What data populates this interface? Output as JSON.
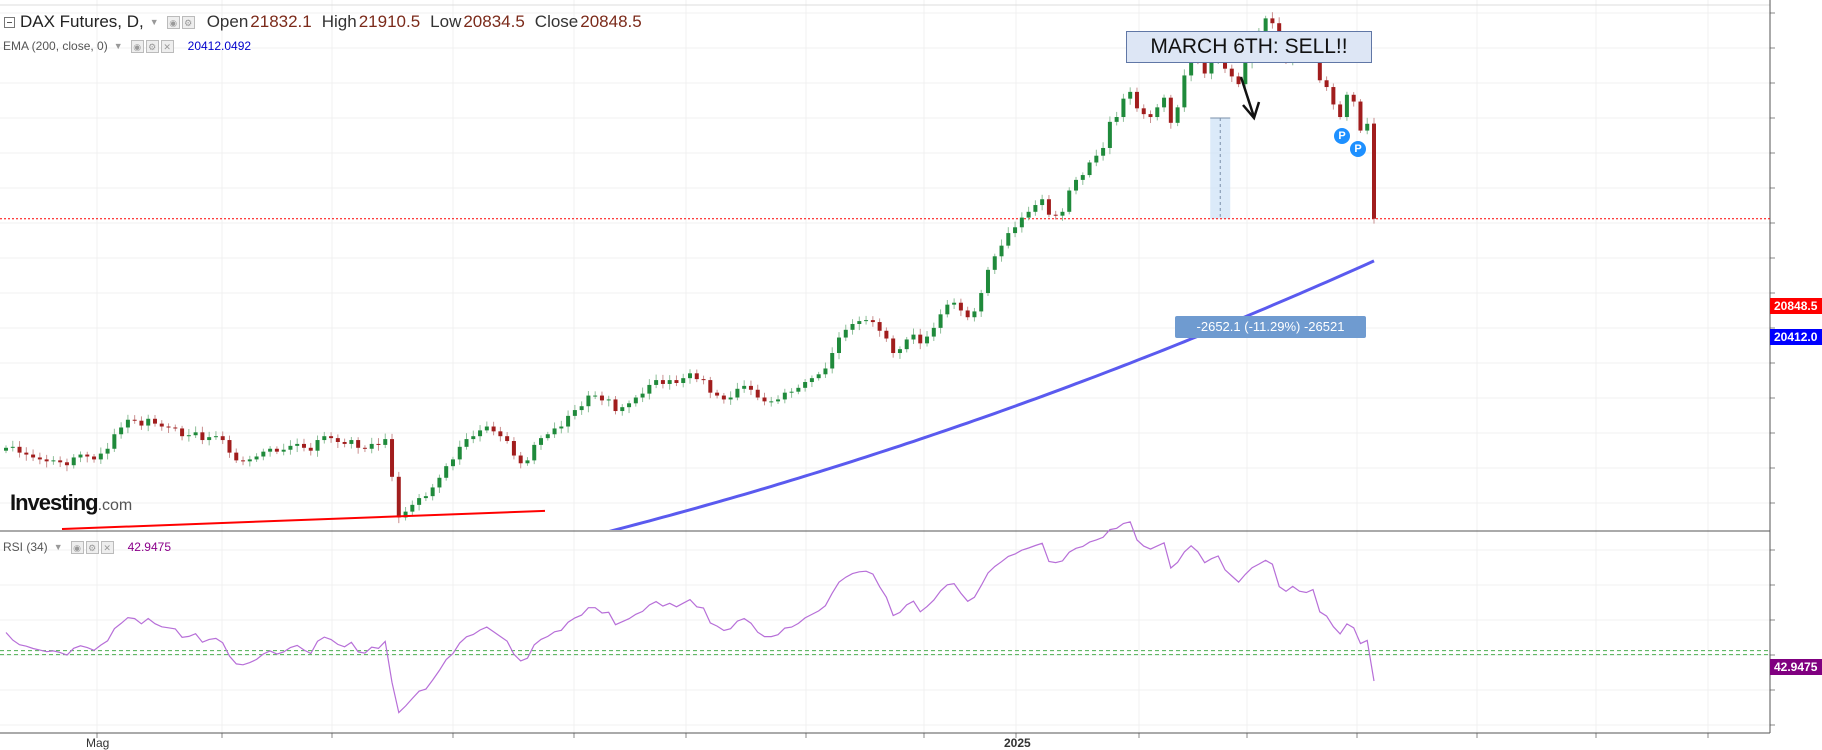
{
  "header": {
    "symbol": "DAX Futures, D,",
    "open_label": "Open",
    "open_value": "21832.1",
    "high_label": "High",
    "high_value": "21910.5",
    "low_label": "Low",
    "low_value": "20834.5",
    "close_label": "Close",
    "close_value": "20848.5"
  },
  "ema_legend": {
    "label": "EMA (200, close, 0)",
    "value": "20412.0492"
  },
  "rsi_legend": {
    "label": "RSI (34)",
    "value": "42.9475"
  },
  "watermark": {
    "brand": "Investing",
    "suffix": ".com"
  },
  "annotation": {
    "text": "MARCH 6TH: SELL!!"
  },
  "measure": {
    "text": "-2652.1 (-11.29%) -26521"
  },
  "price_tags": {
    "close": "20848.5",
    "ema": "20412.0",
    "rsi": "42.9475"
  },
  "markers": {
    "p": "P"
  },
  "x_axis": {
    "may": "Mag",
    "year": "2025"
  },
  "colors": {
    "up": "#1f8a3b",
    "down": "#a11d1d",
    "ema": "#5a5aef",
    "rsi": "#b76fd8",
    "trendline": "#ff0000",
    "close_line": "#ff0000",
    "rsi_band": "#4caf50"
  },
  "icons": {
    "collapse": "collapse-icon",
    "settings": "settings-icon",
    "visibility": "eye-icon",
    "remove": "close-icon"
  },
  "chart_data": {
    "type": "candlestick",
    "symbol": "DAX Futures",
    "interval": "D",
    "price_range": [
      17600,
      23300
    ],
    "closing_prices": [
      18480,
      18490,
      18430,
      18410,
      18380,
      18360,
      18340,
      18350,
      18330,
      18300,
      18380,
      18410,
      18390,
      18360,
      18420,
      18470,
      18620,
      18690,
      18770,
      18760,
      18710,
      18780,
      18730,
      18700,
      18690,
      18680,
      18600,
      18610,
      18640,
      18560,
      18590,
      18600,
      18560,
      18430,
      18350,
      18340,
      18360,
      18390,
      18440,
      18470,
      18440,
      18460,
      18500,
      18520,
      18480,
      18450,
      18560,
      18600,
      18580,
      18540,
      18520,
      18560,
      18480,
      18470,
      18520,
      18510,
      18570,
      18180,
      17760,
      17820,
      17890,
      17960,
      17980,
      18070,
      18170,
      18290,
      18360,
      18490,
      18570,
      18600,
      18660,
      18700,
      18650,
      18600,
      18550,
      18400,
      18320,
      18350,
      18510,
      18580,
      18620,
      18680,
      18700,
      18810,
      18870,
      18910,
      19020,
      19020,
      18970,
      18980,
      18860,
      18900,
      18940,
      19000,
      19040,
      19130,
      19180,
      19140,
      19180,
      19150,
      19200,
      19250,
      19190,
      19180,
      19050,
      19020,
      18980,
      19000,
      19090,
      19120,
      19080,
      19000,
      18960,
      18960,
      18980,
      19050,
      19060,
      19100,
      19160,
      19200,
      19240,
      19300,
      19460,
      19620,
      19700,
      19760,
      19790,
      19800,
      19780,
      19690,
      19610,
      19460,
      19500,
      19600,
      19650,
      19560,
      19630,
      19720,
      19860,
      19960,
      19980,
      19900,
      19830,
      19890,
      20080,
      20320,
      20460,
      20570,
      20700,
      20760,
      20860,
      20920,
      20990,
      21050,
      20890,
      20880,
      20920,
      21140,
      21250,
      21300,
      21430,
      21500,
      21580,
      21850,
      21900,
      22090,
      22160,
      21990,
      21930,
      21900,
      22000,
      22100,
      21840,
      22000,
      22330,
      22550,
      22480,
      22350,
      22480,
      22570,
      22400,
      22320,
      22240,
      22460,
      22670,
      22790,
      22920,
      22870,
      22560,
      22490,
      22630,
      22560,
      22540,
      22620,
      22280,
      22210,
      22030,
      21900,
      22130,
      22060,
      21760,
      21830,
      20848.5
    ],
    "ema200": {
      "name": "EMA (200, close, 0)",
      "last": 20412.0492
    },
    "trendline": {
      "from": [
        "May",
        17700
      ],
      "to": [
        "Aug",
        17880
      ]
    },
    "annotation": {
      "text": "MARCH 6TH: SELL!!",
      "target": "March 6 high"
    },
    "measure": {
      "change": -2652.1,
      "percent": -11.29,
      "ticks": -26521
    },
    "rsi": {
      "period": 34,
      "last": 42.9475,
      "bands": [
        49.5,
        50.5
      ],
      "range": [
        30,
        80
      ]
    },
    "x_labels": [
      "Mag",
      "2025"
    ],
    "grid": true
  }
}
